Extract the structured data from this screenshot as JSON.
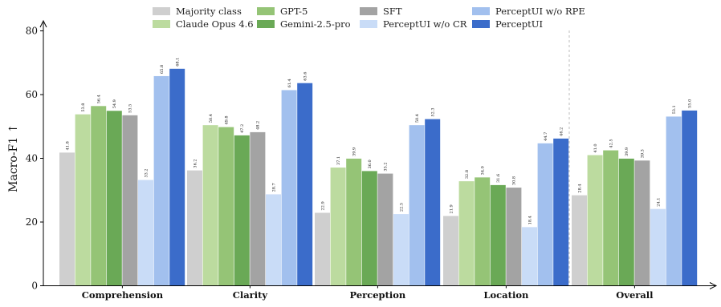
{
  "chart_data": {
    "type": "bar",
    "ylabel": "Macro-F1 ↑",
    "ylim": [
      0,
      80
    ],
    "yticks": [
      0,
      20,
      40,
      60,
      80
    ],
    "categories": [
      "Comprehension",
      "Clarity",
      "Perception",
      "Location",
      "Overall"
    ],
    "separator_before_category": "Overall",
    "legend_placement": "top",
    "grid": false,
    "series": [
      {
        "name": "Majority class",
        "color": "#cfcfcf",
        "values": [
          41.8,
          36.2,
          22.9,
          21.9,
          28.4
        ],
        "labels": [
          "41.8",
          "36.2",
          "22.9",
          "21.9",
          "28.4"
        ]
      },
      {
        "name": "Claude Opus 4.6",
        "color": "#bcdb9f",
        "values": [
          53.8,
          50.4,
          37.1,
          32.8,
          41.0
        ],
        "labels": [
          "53.8",
          "50.4",
          "37.1",
          "32.8",
          "41.0"
        ]
      },
      {
        "name": "GPT-5",
        "color": "#95c476",
        "values": [
          56.4,
          49.8,
          39.9,
          34.0,
          42.5
        ],
        "labels": [
          "56.4",
          "49.8",
          "39.9",
          "34.0",
          "42.5"
        ]
      },
      {
        "name": "Gemini-2.5-pro",
        "color": "#6aa956",
        "values": [
          54.9,
          47.2,
          36.0,
          31.6,
          39.9
        ],
        "labels": [
          "54.9",
          "47.2",
          "36.0",
          "31.6",
          "39.9"
        ]
      },
      {
        "name": "SFT",
        "color": "#a3a3a3",
        "values": [
          53.5,
          48.2,
          35.2,
          30.8,
          39.3
        ],
        "labels": [
          "53.5",
          "48.2",
          "35.2",
          "30.8",
          "39.3"
        ]
      },
      {
        "name": "PerceptUI w/o CR",
        "color": "#c9dcf7",
        "values": [
          33.2,
          28.7,
          22.5,
          18.4,
          24.1
        ],
        "labels": [
          "33.2",
          "28.7",
          "22.5",
          "18.4",
          "24.1"
        ]
      },
      {
        "name": "PerceptUI w/o RPE",
        "color": "#a2c0ee",
        "values": [
          65.8,
          61.4,
          50.4,
          44.7,
          53.1
        ],
        "labels": [
          "65.8",
          "61.4",
          "50.4",
          "44.7",
          "53.1"
        ]
      },
      {
        "name": "PerceptUI",
        "color": "#3b6cca",
        "values": [
          68.1,
          63.6,
          52.3,
          46.2,
          55.0
        ],
        "labels": [
          "68.1",
          "63.6",
          "52.3",
          "46.2",
          "55.0"
        ]
      }
    ]
  }
}
